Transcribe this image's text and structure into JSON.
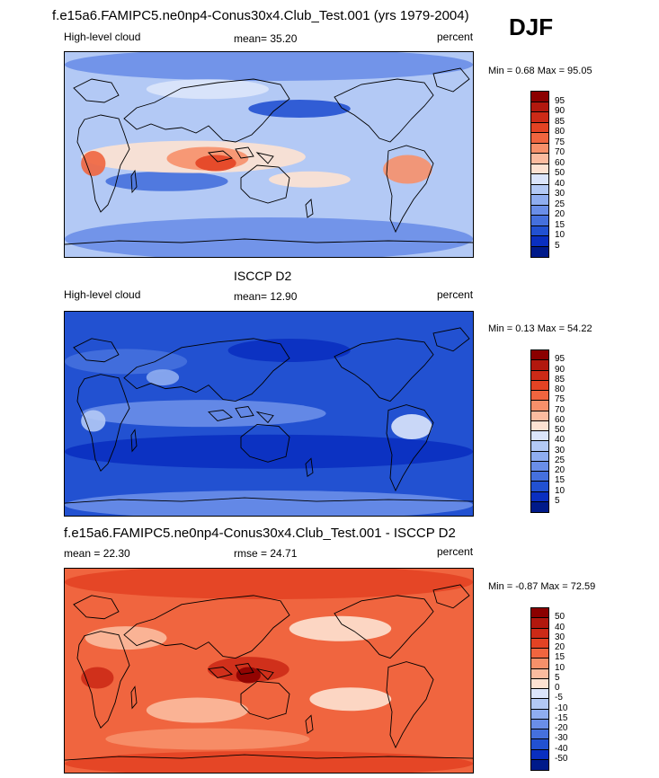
{
  "header": {
    "model_title": "f.e15a6.FAMIPC5.ne0np4-Conus30x4.Club_Test.001 (yrs 1979-2004)",
    "season": "DJF"
  },
  "panels": [
    {
      "title": "",
      "left": "High-level cloud",
      "center": "mean=  35.20",
      "right": "percent",
      "minmax": "Min =   0.68 Max =  95.05",
      "colorbar": {
        "labels": [
          "95",
          "90",
          "85",
          "80",
          "75",
          "70",
          "60",
          "50",
          "40",
          "30",
          "25",
          "20",
          "15",
          "10",
          "5"
        ],
        "colors": [
          "#8b0000",
          "#b2180e",
          "#cc2a17",
          "#e34324",
          "#f0653f",
          "#f7906a",
          "#fbbb9f",
          "#fde2d2",
          "#dbe5fb",
          "#b3c9f5",
          "#8fadf0",
          "#6a8ee8",
          "#4570dd",
          "#2251d1",
          "#0a2fc0",
          "#001a8a"
        ]
      },
      "map_style": "model"
    },
    {
      "title": "ISCCP D2",
      "left": "High-level cloud",
      "center": "mean=  12.90",
      "right": "percent",
      "minmax": "Min =   0.13 Max =  54.22",
      "colorbar": {
        "labels": [
          "95",
          "90",
          "85",
          "80",
          "75",
          "70",
          "60",
          "50",
          "40",
          "30",
          "25",
          "20",
          "15",
          "10",
          "5"
        ],
        "colors": [
          "#8b0000",
          "#b2180e",
          "#cc2a17",
          "#e34324",
          "#f0653f",
          "#f7906a",
          "#fbbb9f",
          "#fde2d2",
          "#dbe5fb",
          "#b3c9f5",
          "#8fadf0",
          "#6a8ee8",
          "#4570dd",
          "#2251d1",
          "#0a2fc0",
          "#001a8a"
        ]
      },
      "map_style": "obs"
    },
    {
      "title": "f.e15a6.FAMIPC5.ne0np4-Conus30x4.Club_Test.001 - ISCCP D2",
      "left": "mean =  22.30",
      "center": "rmse =  24.71",
      "right": "percent",
      "minmax": "Min =  -0.87 Max =  72.59",
      "colorbar": {
        "labels": [
          "50",
          "40",
          "30",
          "20",
          "15",
          "10",
          "5",
          "0",
          "-5",
          "-10",
          "-15",
          "-20",
          "-30",
          "-40",
          "-50"
        ],
        "colors": [
          "#8b0000",
          "#b2180e",
          "#cc2a17",
          "#e34324",
          "#f0653f",
          "#f7906a",
          "#fbbb9f",
          "#fde2d2",
          "#dbe5fb",
          "#b3c9f5",
          "#8fadf0",
          "#6a8ee8",
          "#4570dd",
          "#2251d1",
          "#0a2fc0",
          "#001a8a"
        ]
      },
      "map_style": "diff"
    }
  ],
  "chart_data": [
    {
      "type": "heatmap",
      "title": "f.e15a6.FAMIPC5.ne0np4-Conus30x4.Club_Test.001 (yrs 1979-2004)",
      "variable": "High-level cloud",
      "units": "percent",
      "season": "DJF",
      "mean": 35.2,
      "min": 0.68,
      "max": 95.05,
      "contour_levels": [
        5,
        10,
        15,
        20,
        25,
        30,
        40,
        50,
        60,
        70,
        75,
        80,
        85,
        90,
        95
      ]
    },
    {
      "type": "heatmap",
      "title": "ISCCP D2",
      "variable": "High-level cloud",
      "units": "percent",
      "mean": 12.9,
      "min": 0.13,
      "max": 54.22,
      "contour_levels": [
        5,
        10,
        15,
        20,
        25,
        30,
        40,
        50,
        60,
        70,
        75,
        80,
        85,
        90,
        95
      ]
    },
    {
      "type": "heatmap",
      "title": "f.e15a6.FAMIPC5.ne0np4-Conus30x4.Club_Test.001 - ISCCP D2",
      "units": "percent",
      "mean": 22.3,
      "rmse": 24.71,
      "min": -0.87,
      "max": 72.59,
      "contour_levels": [
        -50,
        -40,
        -30,
        -20,
        -15,
        -10,
        -5,
        0,
        5,
        10,
        15,
        20,
        30,
        40,
        50
      ]
    }
  ]
}
